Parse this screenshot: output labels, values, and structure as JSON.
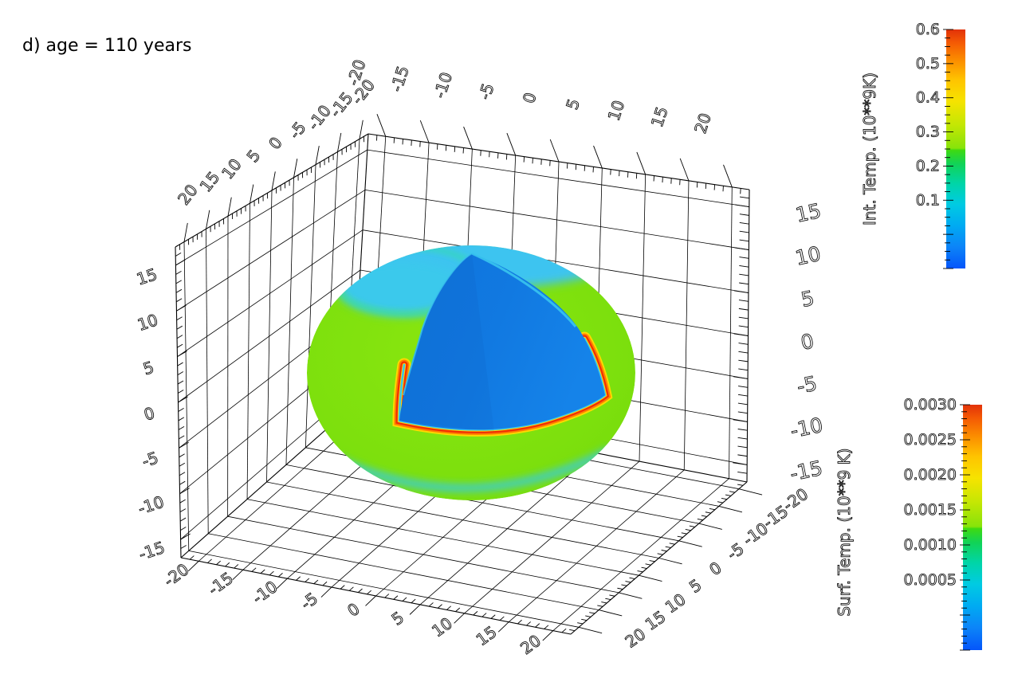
{
  "title": "d) age = 110 years",
  "colorbars": {
    "internal": {
      "title": "Int. Temp. (10**9K)",
      "ticks": [
        "0.6",
        "0.5",
        "0.4",
        "0.3",
        "0.2",
        "0.1"
      ]
    },
    "surface": {
      "title": "Surf. Temp. (10**9 K)",
      "ticks": [
        "0.0030",
        "0.0025",
        "0.0020",
        "0.0015",
        "0.0010",
        "0.0005"
      ]
    }
  },
  "axes": {
    "top_left": {
      "labels": [
        "20",
        "15",
        "10",
        "5",
        "0",
        "-5",
        "-10",
        "-15",
        "-20"
      ]
    },
    "top_right": {
      "labels": [
        "-20",
        "-15",
        "-10",
        "-5",
        "0",
        "5",
        "10",
        "15",
        "20"
      ]
    },
    "left_vertical": {
      "labels": [
        "15",
        "10",
        "5",
        "0",
        "-5",
        "-10",
        "-15"
      ]
    },
    "right_vertical": {
      "labels": [
        "15",
        "10",
        "5",
        "0",
        "-5",
        "-10",
        "-15"
      ]
    },
    "bottom_left": {
      "labels": [
        "-20",
        "-15",
        "-10",
        "-5",
        "0",
        "5",
        "10",
        "15",
        "20"
      ]
    },
    "bottom_right": {
      "labels": [
        "20",
        "15",
        "10",
        "5",
        "0",
        "-5",
        "-10",
        "-15",
        "-20"
      ]
    }
  },
  "colors": {
    "surface_green": "#7de00d",
    "polar_cyan": "#3cc4f0",
    "lobe_cyan": "#3ac9ec",
    "ring_turquoise": "#35dcb0",
    "fringe_cyan": "#35cbe8",
    "interior_blue": "#1179e1",
    "crust_red": "#ef2e06",
    "crust_orange": "#ff7e00",
    "crust_yellow": "#ffd800",
    "crust_inner_cyan": "#38c4ee"
  },
  "chart_data": {
    "type": "3d-surface-cutaway-sphere",
    "title": "d) age = 110 years",
    "axis_ranges": {
      "x": [
        -20,
        20
      ],
      "y": [
        -20,
        20
      ],
      "z": [
        -15,
        15
      ]
    },
    "grid_step": 5,
    "minor_tick_step": 1,
    "sphere_radius": 15,
    "colorbars": [
      {
        "label": "Int. Temp. (10**9K)",
        "range": [
          0.0,
          0.6
        ],
        "major_tick_step": 0.1,
        "minor_tick_step": 0.025,
        "colormap": "rainbow",
        "orientation": "vertical",
        "position": "top-right"
      },
      {
        "label": "Surf. Temp. (10**9 K)",
        "range": [
          0.0,
          0.003
        ],
        "major_tick_step": 0.0005,
        "minor_tick_step": 0.0001,
        "colormap": "rainbow",
        "orientation": "vertical",
        "position": "bottom-right"
      }
    ],
    "regions": [
      {
        "name": "outer surface",
        "color": "green",
        "approx_surface_temp_1e9K": 0.0016
      },
      {
        "name": "polar cap band (top)",
        "color": "cyan",
        "approx_surface_temp_1e9K": 0.0009
      },
      {
        "name": "cutaway interior faces",
        "color": "blue",
        "approx_internal_temp_1e9K": 0.07
      },
      {
        "name": "crust layer at cut edge",
        "color": "red-orange rim",
        "approx_internal_temp_1e9K": 0.55
      }
    ],
    "legend_position": "right",
    "grid": true
  }
}
